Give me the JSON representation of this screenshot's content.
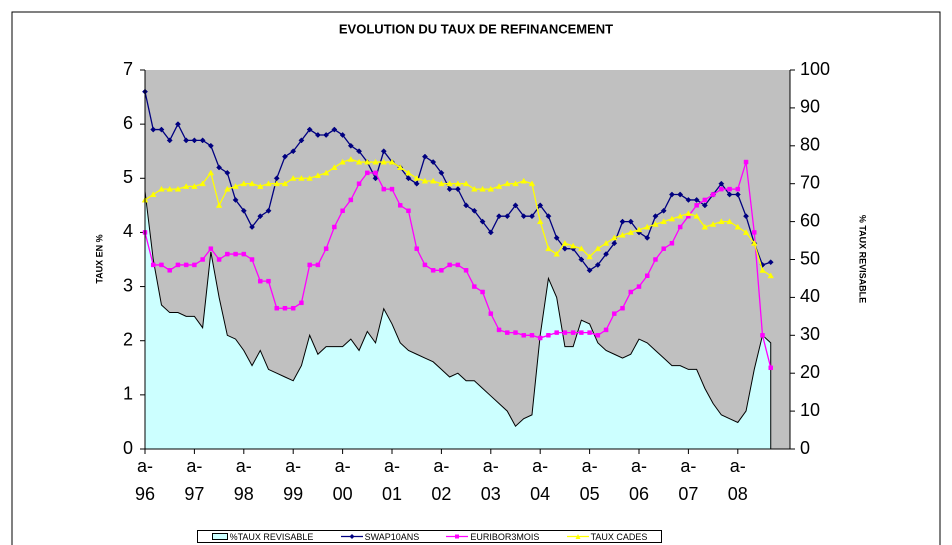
{
  "chart_data": {
    "type": "line",
    "title": "EVOLUTION DU TAUX DE REFINANCEMENT",
    "y_label": "TAUX EN %",
    "y2_label": "% TAUX REVISABLE",
    "categories": [
      "a-96",
      null,
      null,
      null,
      null,
      null,
      "a-97",
      null,
      null,
      null,
      null,
      null,
      "a-98",
      null,
      null,
      null,
      null,
      null,
      "a-99",
      null,
      null,
      null,
      null,
      null,
      "a-00",
      null,
      null,
      null,
      null,
      null,
      "a-01",
      null,
      null,
      null,
      null,
      null,
      "a-02",
      null,
      null,
      null,
      null,
      null,
      "a-03",
      null,
      null,
      null,
      null,
      null,
      "a-04",
      null,
      null,
      null,
      null,
      null,
      "a-05",
      null,
      null,
      null,
      null,
      null,
      "a-06",
      null,
      null,
      null,
      null,
      null,
      "a-07",
      null,
      null,
      null,
      null,
      null,
      "a-08",
      null,
      null,
      null,
      null
    ],
    "ylim": [
      0,
      7
    ],
    "yticks": [
      0,
      1,
      2,
      3,
      4,
      5,
      6,
      7
    ],
    "y2lim": [
      0,
      100
    ],
    "y2ticks": [
      0,
      10,
      20,
      30,
      40,
      50,
      60,
      70,
      80,
      90,
      100
    ],
    "background": "#c0c0c0",
    "series": [
      {
        "name": "%TAUX REVISABLE",
        "type": "area",
        "axis": "y2",
        "color": "#ccffff",
        "values": [
          68,
          50,
          38,
          36,
          36,
          35,
          35,
          32,
          52,
          40,
          30,
          29,
          26,
          22,
          26,
          21,
          20,
          19,
          18,
          22,
          30,
          25,
          27,
          27,
          27,
          29,
          26,
          31,
          28,
          37,
          33,
          28,
          26,
          25,
          24,
          23,
          21,
          19,
          20,
          18,
          18,
          16,
          14,
          12,
          10,
          6,
          8,
          9,
          30,
          45,
          40,
          27,
          27,
          34,
          33,
          28,
          26,
          25,
          24,
          25,
          29,
          28,
          26,
          24,
          22,
          22,
          21,
          21,
          16,
          12,
          9,
          8,
          7,
          10,
          21,
          30,
          28
        ]
      },
      {
        "name": "SWAP10ANS",
        "type": "line",
        "marker": "diamond",
        "color": "#000080",
        "values": [
          6.6,
          5.9,
          5.9,
          5.7,
          6.0,
          5.7,
          5.7,
          5.7,
          5.6,
          5.2,
          5.1,
          4.6,
          4.4,
          4.1,
          4.3,
          4.4,
          5.0,
          5.4,
          5.5,
          5.7,
          5.9,
          5.8,
          5.8,
          5.9,
          5.8,
          5.6,
          5.5,
          5.3,
          5.0,
          5.5,
          5.3,
          5.2,
          5.0,
          4.9,
          5.4,
          5.3,
          5.1,
          4.8,
          4.8,
          4.5,
          4.4,
          4.2,
          4.0,
          4.3,
          4.3,
          4.5,
          4.3,
          4.3,
          4.5,
          4.3,
          3.9,
          3.7,
          3.7,
          3.5,
          3.3,
          3.4,
          3.6,
          3.8,
          4.2,
          4.2,
          4.0,
          3.9,
          4.3,
          4.4,
          4.7,
          4.7,
          4.6,
          4.6,
          4.5,
          4.7,
          4.9,
          4.7,
          4.7,
          4.3,
          3.8,
          3.4,
          3.45
        ]
      },
      {
        "name": "EURIBOR3MOIS",
        "type": "line",
        "marker": "square",
        "color": "#ff00ff",
        "values": [
          4.0,
          3.4,
          3.4,
          3.3,
          3.4,
          3.4,
          3.4,
          3.5,
          3.7,
          3.5,
          3.6,
          3.6,
          3.6,
          3.5,
          3.1,
          3.1,
          2.6,
          2.6,
          2.6,
          2.7,
          3.4,
          3.4,
          3.7,
          4.1,
          4.4,
          4.6,
          4.9,
          5.1,
          5.1,
          4.8,
          4.8,
          4.5,
          4.4,
          3.7,
          3.4,
          3.3,
          3.3,
          3.4,
          3.4,
          3.3,
          3.0,
          2.9,
          2.5,
          2.2,
          2.15,
          2.15,
          2.1,
          2.1,
          2.05,
          2.1,
          2.15,
          2.15,
          2.15,
          2.15,
          2.15,
          2.1,
          2.2,
          2.5,
          2.6,
          2.9,
          3.0,
          3.2,
          3.5,
          3.7,
          3.8,
          4.1,
          4.3,
          4.5,
          4.6,
          4.7,
          4.8,
          4.8,
          4.8,
          5.3,
          4.0,
          2.1,
          1.5
        ]
      },
      {
        "name": "TAUX CADES",
        "type": "line",
        "marker": "triangle",
        "color": "#ffff00",
        "values": [
          4.6,
          4.7,
          4.8,
          4.8,
          4.8,
          4.85,
          4.85,
          4.9,
          5.1,
          4.5,
          4.8,
          4.85,
          4.9,
          4.9,
          4.85,
          4.9,
          4.9,
          4.9,
          5.0,
          5.0,
          5.0,
          5.05,
          5.1,
          5.2,
          5.3,
          5.35,
          5.3,
          5.3,
          5.3,
          5.3,
          5.3,
          5.2,
          5.1,
          5.0,
          4.95,
          4.95,
          4.9,
          4.9,
          4.9,
          4.9,
          4.8,
          4.8,
          4.8,
          4.85,
          4.9,
          4.9,
          4.95,
          4.9,
          4.2,
          3.7,
          3.6,
          3.8,
          3.75,
          3.7,
          3.55,
          3.7,
          3.8,
          3.9,
          3.95,
          4.0,
          4.05,
          4.1,
          4.15,
          4.2,
          4.25,
          4.3,
          4.35,
          4.3,
          4.1,
          4.15,
          4.2,
          4.2,
          4.1,
          4.0,
          3.8,
          3.3,
          3.2
        ]
      }
    ]
  }
}
